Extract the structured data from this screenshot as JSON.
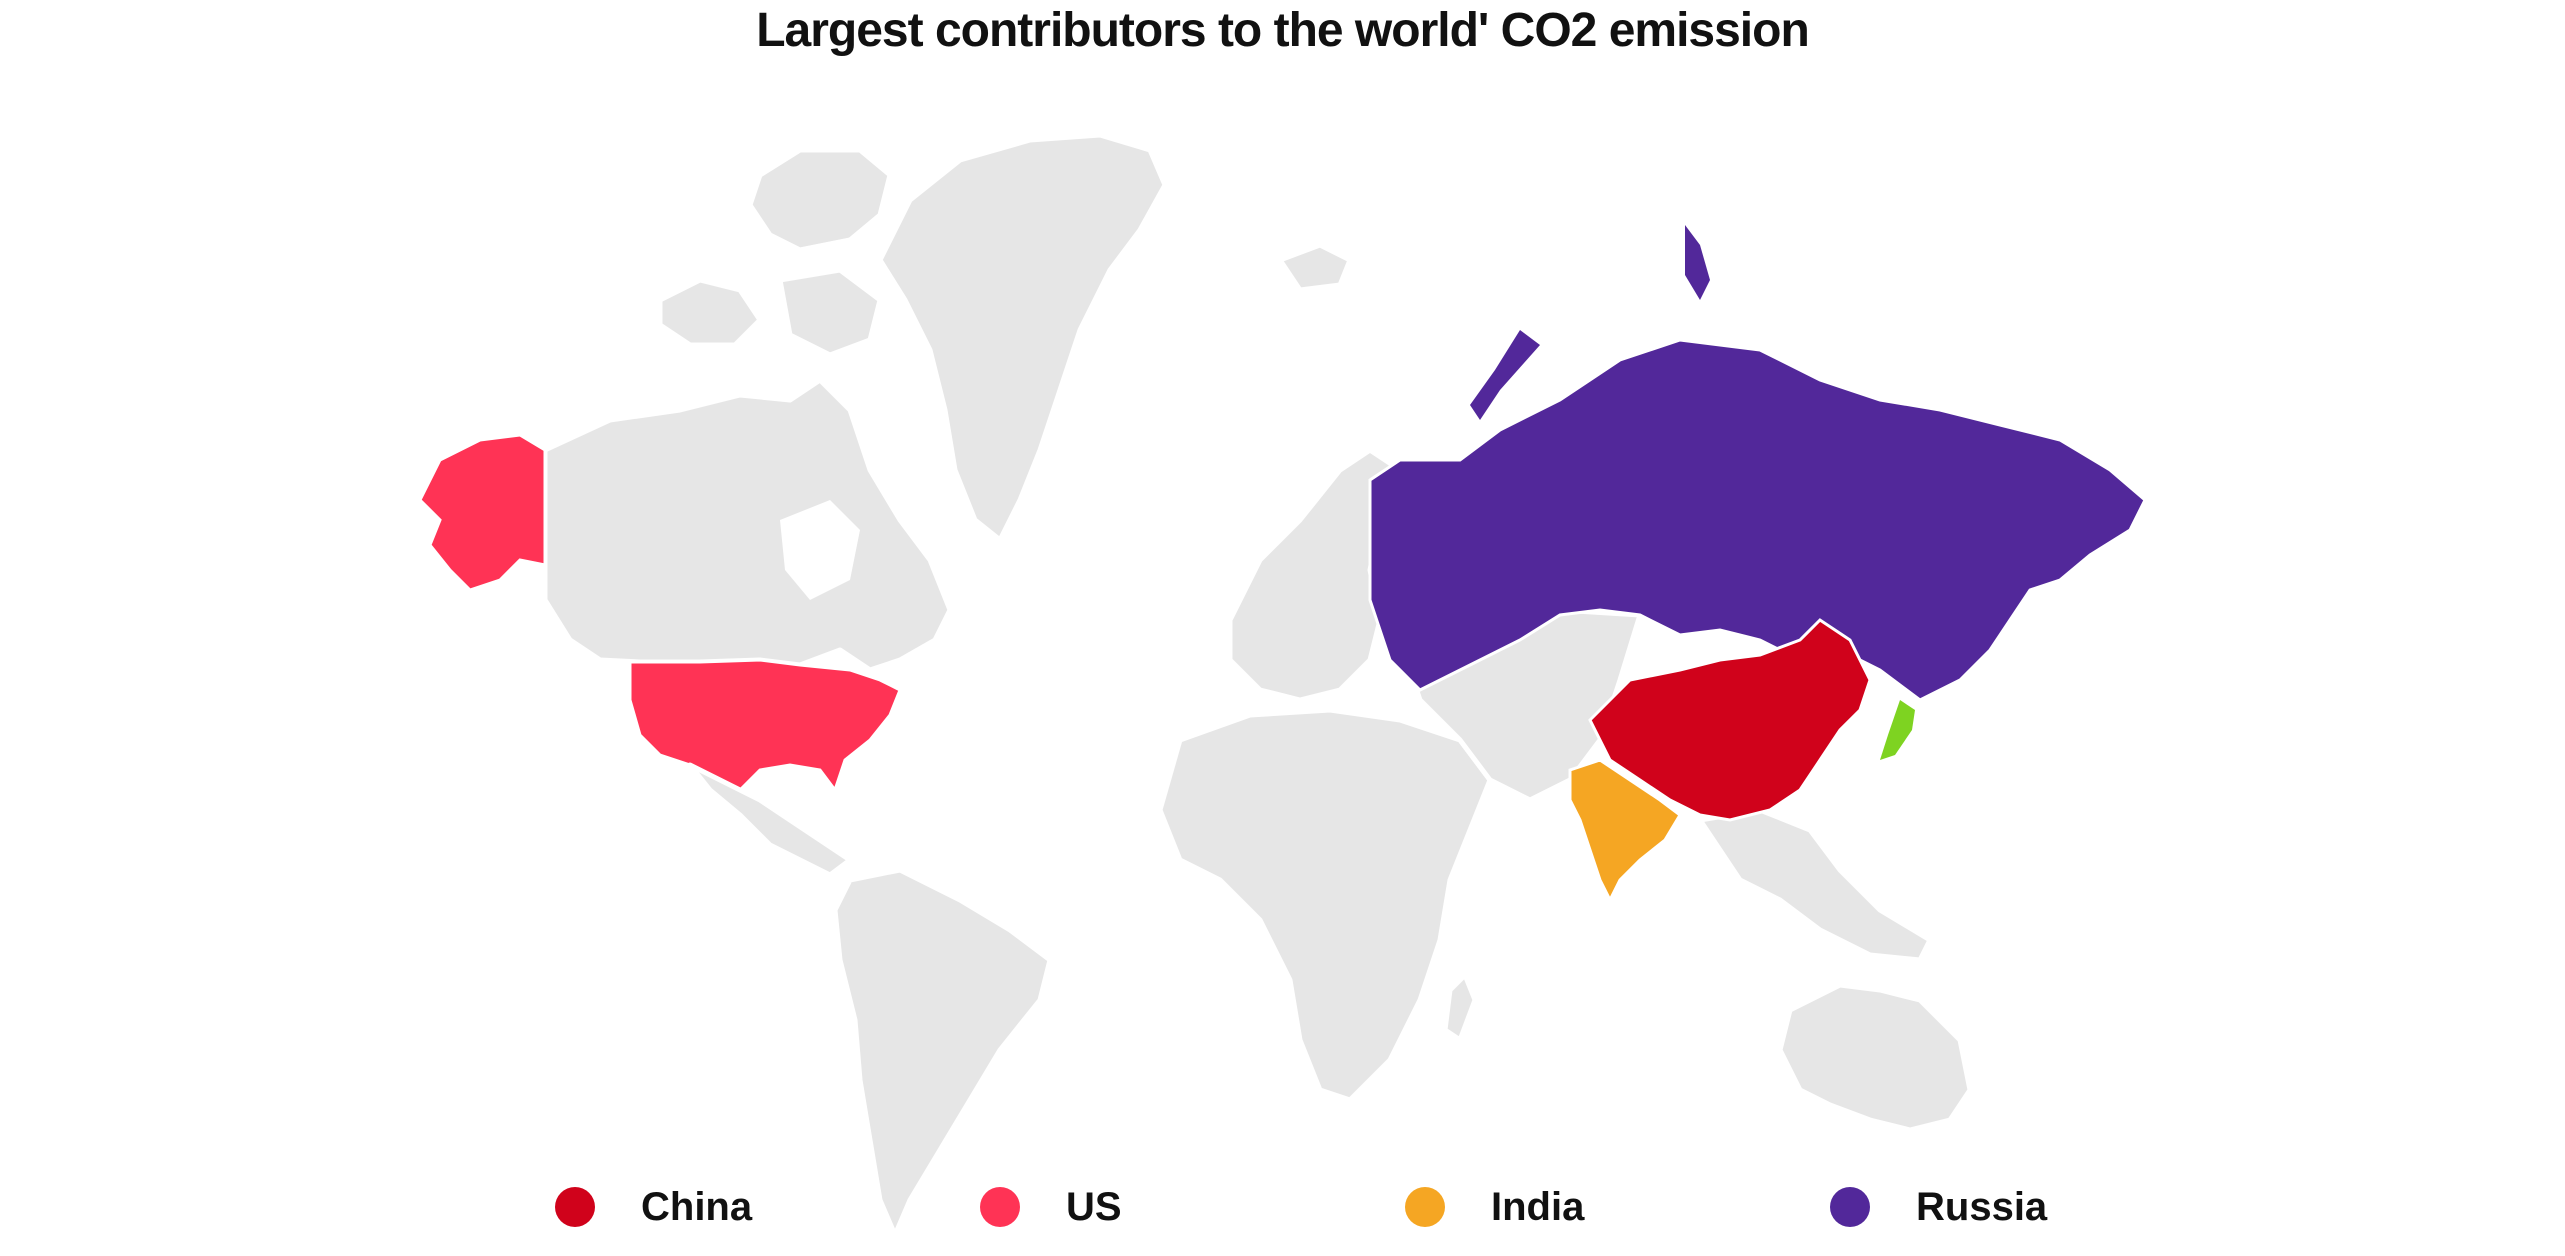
{
  "title": "Largest contributors to the world' CO2 emission",
  "map": {
    "type": "choropleth",
    "base_color": "#e6e6e6",
    "highlighted_countries": [
      {
        "name": "China",
        "color": "#d0021b"
      },
      {
        "name": "US",
        "color": "#ff3355"
      },
      {
        "name": "India",
        "color": "#f5a623"
      },
      {
        "name": "Russia",
        "color": "#52289a"
      },
      {
        "name": "Japan",
        "color": "#7ed321"
      }
    ]
  },
  "legend": [
    {
      "label": "China",
      "color": "#d0021b"
    },
    {
      "label": "US",
      "color": "#ff3355"
    },
    {
      "label": "India",
      "color": "#f5a623"
    },
    {
      "label": "Russia",
      "color": "#52289a"
    }
  ]
}
